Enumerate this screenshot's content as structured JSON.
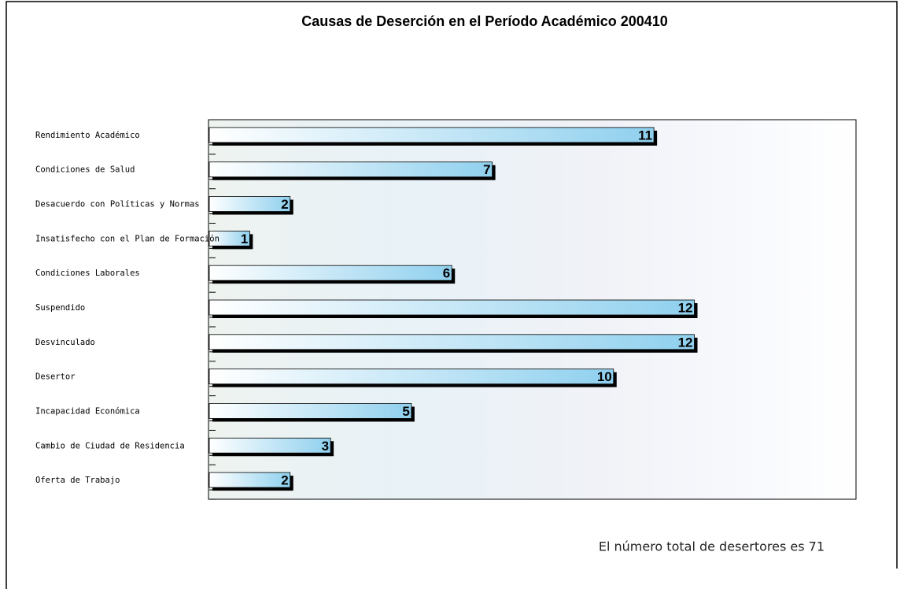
{
  "chart_data": {
    "type": "barh",
    "title": "Causas de Deserción en el Período Académico 200410",
    "categories": [
      "Rendimiento Académico",
      "Condiciones de Salud",
      "Desacuerdo con Políticas y Normas",
      "Insatisfecho con el Plan de Formación",
      "Condiciones Laborales",
      "Suspendido",
      "Desvinculado",
      "Desertor",
      "Incapacidad Económica",
      "Cambio de Ciudad de Residencia",
      "Oferta de Trabajo"
    ],
    "values": [
      11,
      7,
      2,
      1,
      6,
      12,
      12,
      10,
      5,
      3,
      2
    ],
    "color": "#8fd0ee",
    "xlim": [
      0,
      16
    ],
    "annotation": "El número total de desertores es 71"
  }
}
